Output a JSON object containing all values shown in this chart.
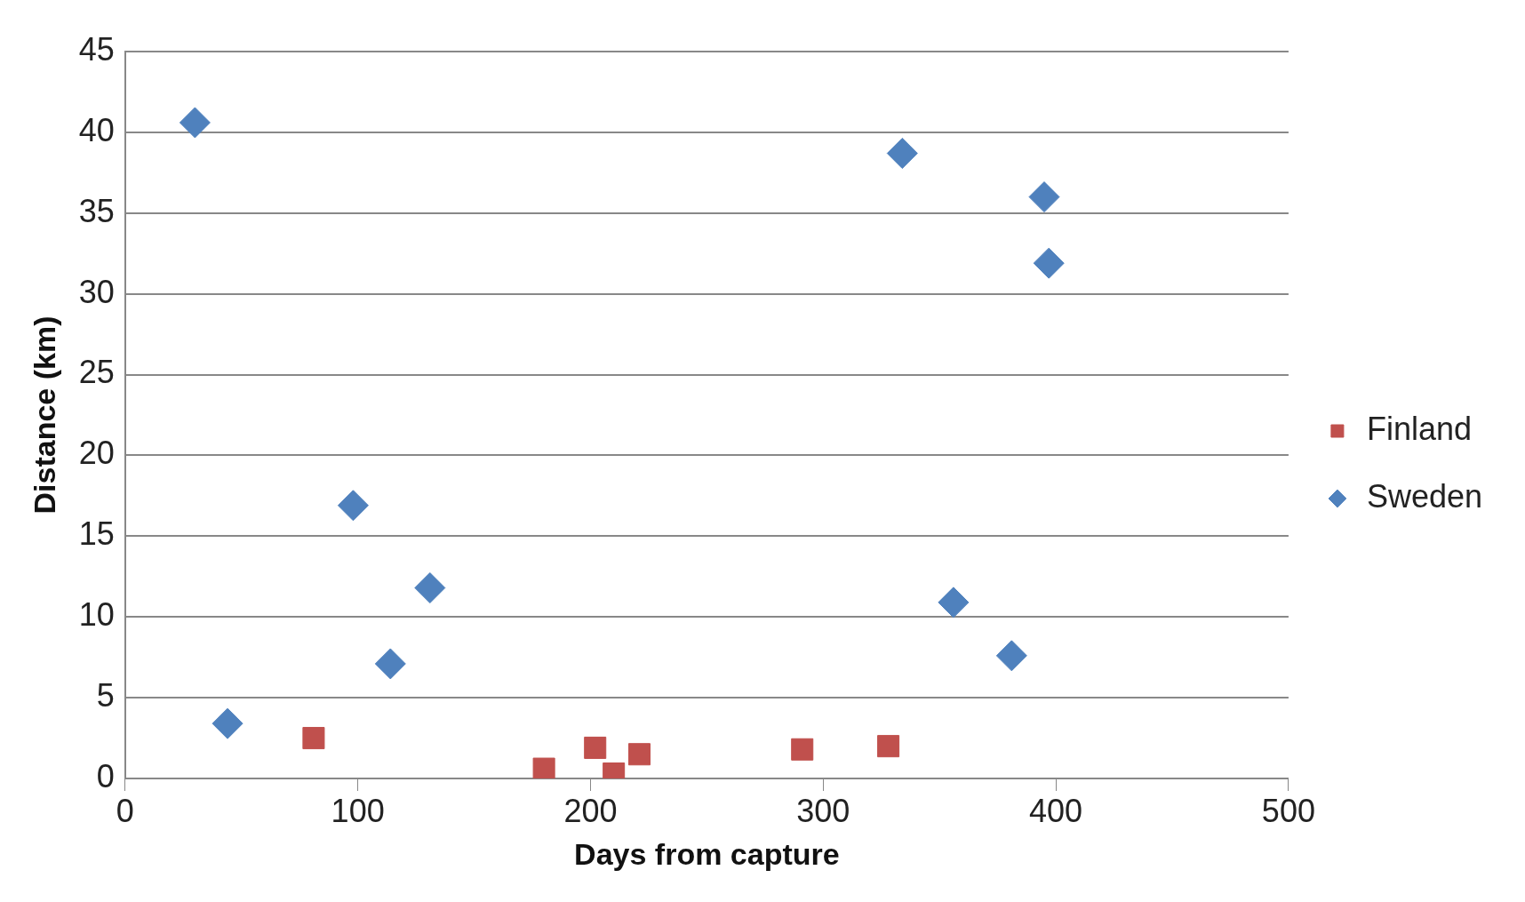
{
  "chart_data": {
    "type": "scatter",
    "xlabel": "Days from capture",
    "ylabel": "Distance (km)",
    "xlim": [
      0,
      500
    ],
    "xticks": [
      0,
      100,
      200,
      300,
      400,
      500
    ],
    "ylim": [
      0,
      45
    ],
    "yticks": [
      0,
      5,
      10,
      15,
      20,
      25,
      30,
      35,
      40,
      45
    ],
    "grid": "y",
    "legend": "right",
    "series": [
      {
        "name": "Finland",
        "color": "#c0504d",
        "marker": "square",
        "x": [
          81,
          180,
          202,
          210,
          221,
          291,
          328
        ],
        "values": [
          2.5,
          0.6,
          1.9,
          0.3,
          1.5,
          1.8,
          2.0
        ]
      },
      {
        "name": "Sweden",
        "color": "#4f81bd",
        "marker": "diamond",
        "x": [
          30,
          44,
          98,
          114,
          131,
          334,
          395,
          397,
          356,
          381
        ],
        "values": [
          40.6,
          3.4,
          16.9,
          7.1,
          11.8,
          38.7,
          36.0,
          31.9,
          10.9,
          7.6
        ]
      }
    ]
  }
}
